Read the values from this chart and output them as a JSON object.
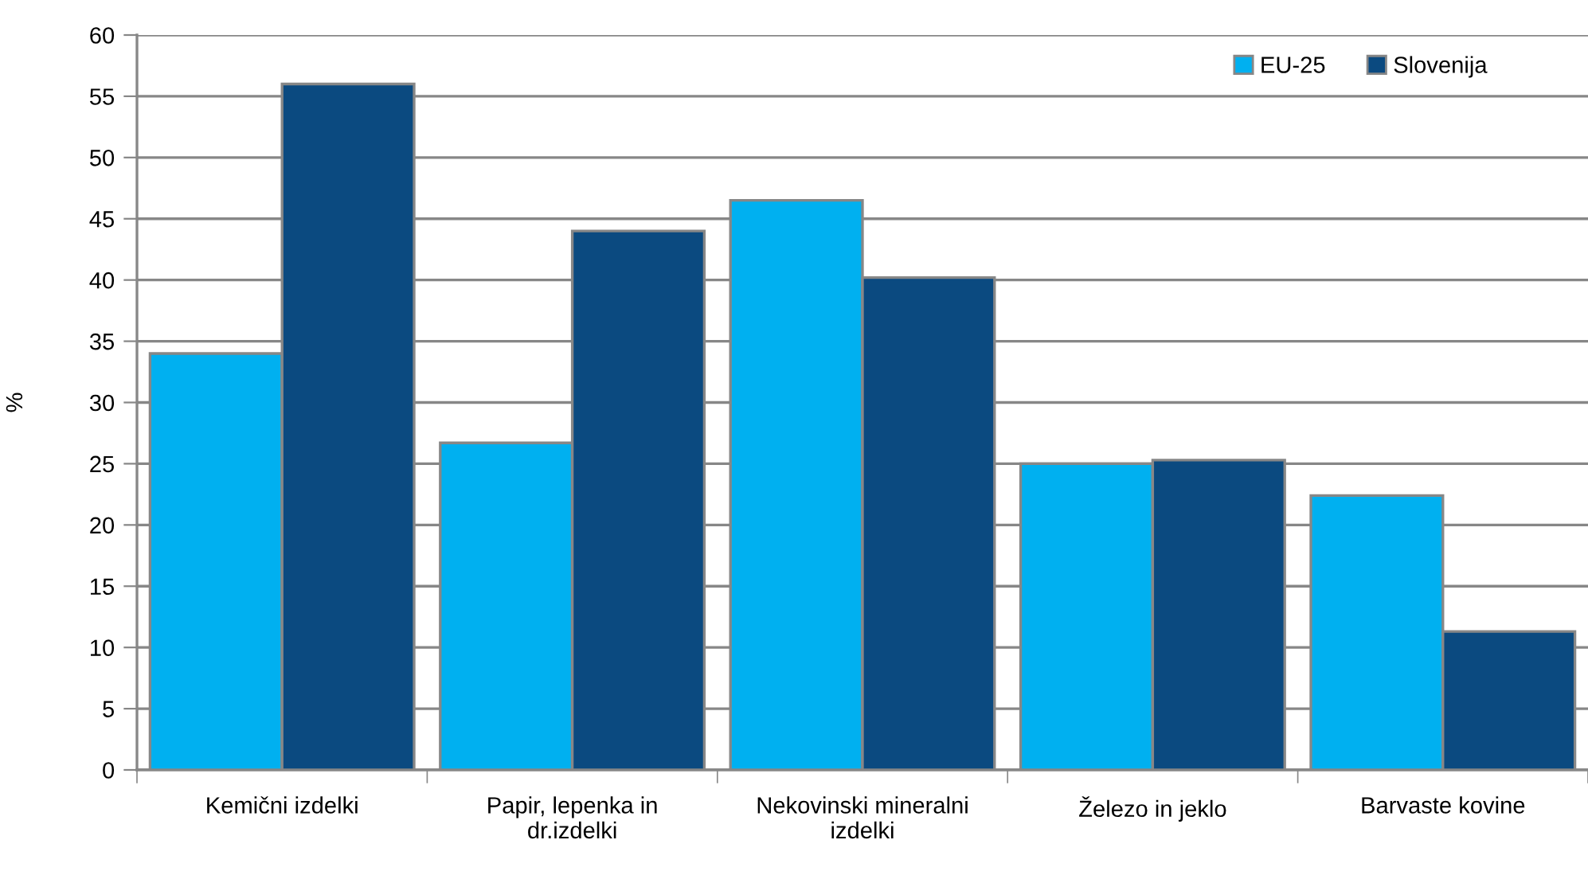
{
  "chart_data": {
    "type": "bar",
    "ylabel": "%",
    "categories": [
      "Kemični izdelki",
      "Papir, lepenka in dr.izdelki",
      "Nekovinski mineralni izdelki",
      "Železo in jeklo",
      "Barvaste kovine"
    ],
    "series": [
      {
        "name": "EU-25",
        "color": "#00b0f0",
        "values": [
          34.0,
          26.7,
          46.5,
          25.0,
          22.4
        ]
      },
      {
        "name": "Slovenija",
        "color": "#0b4a80",
        "values": [
          56.0,
          44.0,
          40.2,
          25.3,
          11.3
        ]
      }
    ],
    "ylim": [
      0,
      60
    ],
    "yticks": [
      0,
      5,
      10,
      15,
      20,
      25,
      30,
      35,
      40,
      45,
      50,
      55,
      60
    ],
    "grid": "y",
    "legend": "top right"
  }
}
